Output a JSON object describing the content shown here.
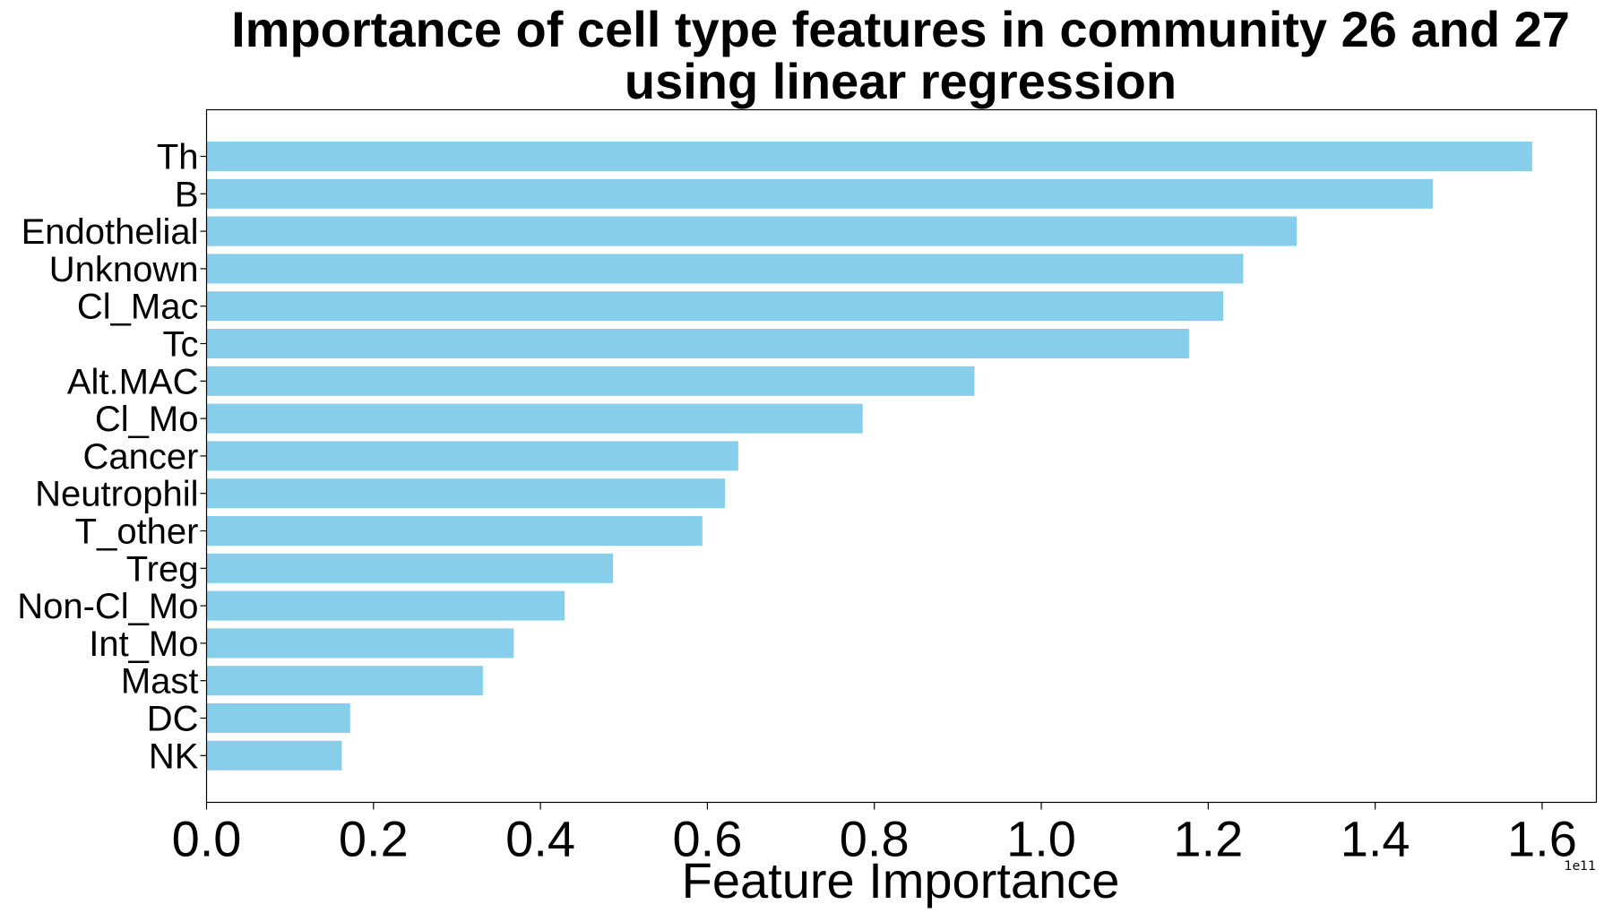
{
  "chart_data": {
    "type": "bar",
    "orientation": "horizontal",
    "title_lines": [
      "Importance of cell type features in community 26 and 27",
      "using linear regression"
    ],
    "xlabel": "Feature Importance",
    "ylabel": "",
    "x_offset_label": "1e11",
    "x_scale": 100000000000,
    "xlim": [
      0,
      1.665
    ],
    "xticks": [
      0.0,
      0.2,
      0.4,
      0.6,
      0.8,
      1.0,
      1.2,
      1.4,
      1.6
    ],
    "xtick_labels": [
      "0.0",
      "0.2",
      "0.4",
      "0.6",
      "0.8",
      "1.0",
      "1.2",
      "1.4",
      "1.6"
    ],
    "bar_color": "#87CEEB",
    "grid": false,
    "categories": [
      "Th",
      "B",
      "Endothelial",
      "Unknown",
      "Cl_Mac",
      "Tc",
      "Alt.MAC",
      "Cl_Mo",
      "Cancer",
      "Neutrophil",
      "T_other",
      "Treg",
      "Non-Cl_Mo",
      "Int_Mo",
      "Mast",
      "DC",
      "NK"
    ],
    "values": [
      1.588,
      1.469,
      1.306,
      1.242,
      1.218,
      1.177,
      0.92,
      0.786,
      0.637,
      0.621,
      0.594,
      0.487,
      0.429,
      0.368,
      0.331,
      0.172,
      0.162
    ]
  }
}
